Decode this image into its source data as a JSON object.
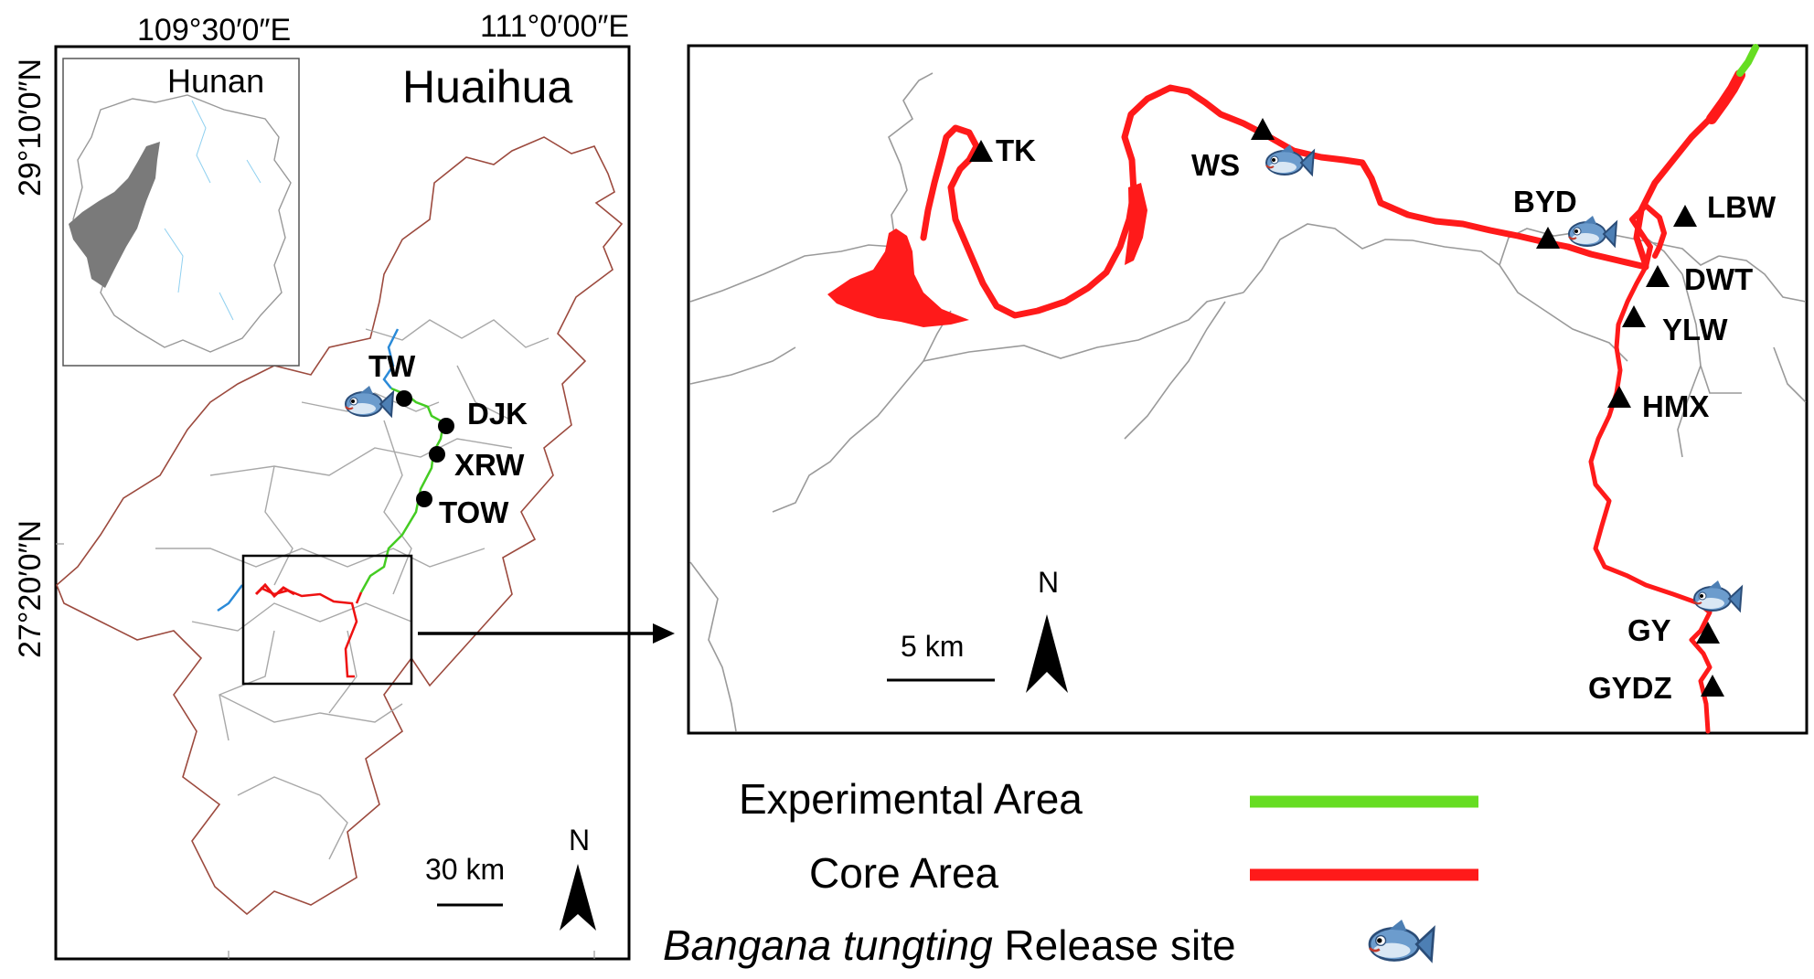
{
  "overview_map": {
    "lon_labels": [
      "109°30′0″E",
      "111°0′00″E"
    ],
    "lat_labels": [
      "29°10′0″N",
      "27°20′0″N"
    ],
    "region_label": "Huaihua",
    "inset_label": "Hunan",
    "sites": [
      "TW",
      "DJK",
      "XRW",
      "TOW"
    ],
    "scale_label": "30 km",
    "north_label": "N"
  },
  "detail_map": {
    "sites": [
      "TK",
      "WS",
      "BYD",
      "LBW",
      "DWT",
      "YLW",
      "HMX",
      "GY",
      "GYDZ"
    ],
    "scale_label": "5 km",
    "north_label": "N"
  },
  "legend": {
    "experimental_label": "Experimental Area",
    "core_label": "Core Area",
    "release_species": "Bangana tungting",
    "release_suffix": " Release site",
    "experimental_color": "#66dd22",
    "core_color": "#ff1a1a"
  },
  "release_icon": "fish-icon"
}
